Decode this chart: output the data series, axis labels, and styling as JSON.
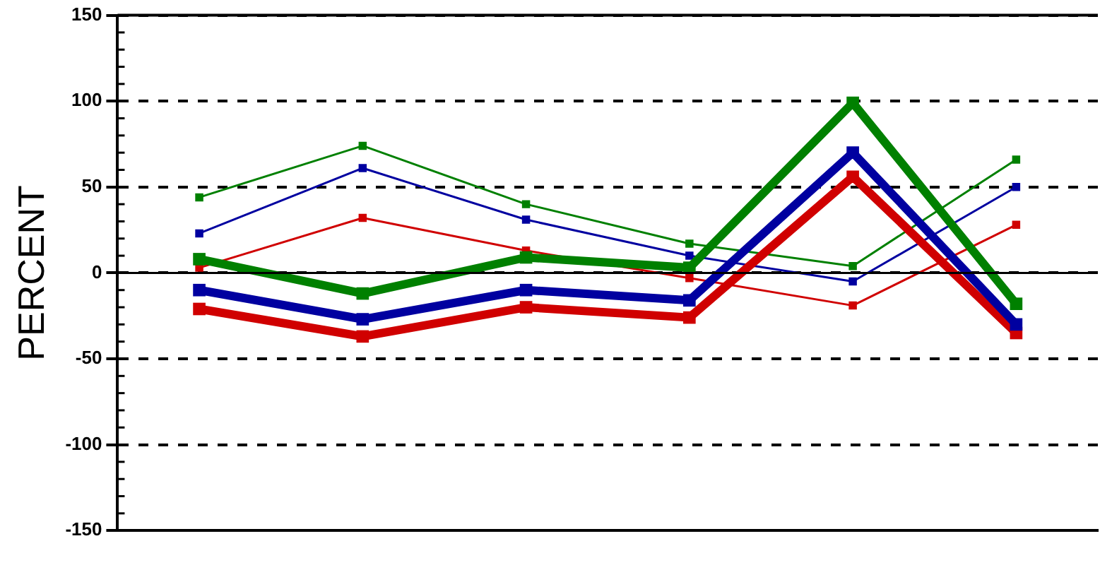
{
  "chart_data": {
    "type": "line",
    "ylabel": "PERCENT",
    "categories": [
      null,
      null,
      null,
      null,
      null,
      null
    ],
    "series": [
      {
        "color": "#008000",
        "values": [
          44,
          74,
          40,
          17,
          4,
          66
        ]
      },
      {
        "color": "#0000a0",
        "values": [
          23,
          61,
          31,
          10,
          -5,
          50
        ]
      },
      {
        "color": "#d00000",
        "values": [
          3,
          32,
          13,
          -3,
          -19,
          28
        ]
      },
      {
        "color": "#008000",
        "values": [
          8,
          -12,
          9,
          3,
          99,
          -18
        ]
      },
      {
        "color": "#0000a0",
        "values": [
          -10,
          -27,
          -10,
          -16,
          70,
          -30
        ]
      },
      {
        "color": "#d00000",
        "values": [
          -21,
          -37,
          -20,
          -26,
          56,
          -35
        ]
      }
    ],
    "ylim": [
      -150,
      150
    ],
    "yticks": [
      150,
      100,
      50,
      0,
      -50,
      -100,
      -150
    ],
    "grid": "y",
    "marker": "square",
    "line_style": "solid",
    "ref_lines": [
      {
        "axis": "y",
        "value": 0
      }
    ]
  }
}
